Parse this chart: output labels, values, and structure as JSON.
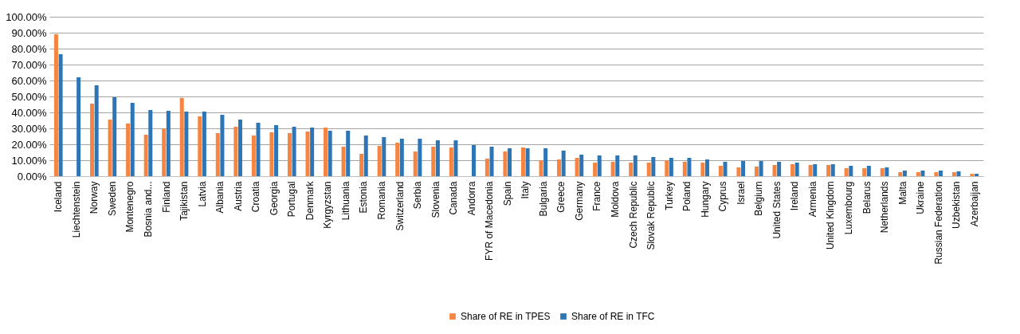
{
  "chart_data": {
    "type": "bar",
    "categories": [
      "Iceland",
      "Liechtenstein",
      "Norway",
      "Sweden",
      "Montenegro",
      "Bosnia and...",
      "Finland",
      "Tajikistan",
      "Latvia",
      "Albania",
      "Austria",
      "Croatia",
      "Georgia",
      "Portugal",
      "Denmark",
      "Kyrgyzstan",
      "Lithuania",
      "Estonia",
      "Romania",
      "Switzerland",
      "Serbia",
      "Slovenia",
      "Canada",
      "Andorra",
      "FYR of Macedonia",
      "Spain",
      "Italy",
      "Bulgaria",
      "Greece",
      "Germany",
      "France",
      "Moldova",
      "Czech Republic",
      "Slovak Republic",
      "Turkey",
      "Poland",
      "Hungary",
      "Cyprus",
      "Israel",
      "Belgium",
      "United States",
      "Ireland",
      "Armenia",
      "United Kingdom",
      "Luxembourg",
      "Belarus",
      "Netherlands",
      "Malta",
      "Ukraine",
      "Russian Federation",
      "Uzbekistan",
      "Azerbaijan"
    ],
    "series": [
      {
        "name": "Share of RE in TPES",
        "color": "#f58540",
        "values": [
          89,
          null,
          45.5,
          35.5,
          33,
          26,
          30,
          49,
          37.5,
          27,
          31,
          25.5,
          27.5,
          27,
          28,
          30.5,
          18.5,
          14,
          19,
          21,
          15.5,
          18.5,
          18,
          null,
          11,
          15.5,
          18,
          10,
          10.5,
          11.5,
          8.5,
          9,
          8.5,
          8.5,
          10,
          9,
          8.5,
          6.5,
          5.5,
          6,
          7,
          7.5,
          7,
          7,
          5,
          5,
          5,
          2.5,
          2.5,
          2.5,
          2.5,
          1.5
        ]
      },
      {
        "name": "Share of RE in TFC",
        "color": "#2e75b6",
        "values": [
          76.5,
          62,
          57,
          49.5,
          46,
          41.5,
          41,
          40.5,
          40.5,
          38.5,
          35.5,
          33.5,
          32,
          31,
          30.5,
          28.5,
          28.5,
          25.5,
          24.5,
          23.5,
          23.5,
          22.5,
          22.5,
          19.5,
          18.5,
          17.5,
          17.5,
          17.5,
          16,
          13.5,
          13,
          13,
          13,
          12,
          11.5,
          11.5,
          10.5,
          9,
          9.5,
          9.5,
          9,
          8.5,
          7.5,
          7.5,
          6.5,
          6.5,
          5.5,
          3.5,
          3.5,
          3.5,
          3,
          1.5
        ]
      }
    ],
    "ylim": [
      0,
      100
    ],
    "yticks": [
      {
        "value": 0,
        "label": "0.00%"
      },
      {
        "value": 10,
        "label": "10.00%"
      },
      {
        "value": 20,
        "label": "20.00%"
      },
      {
        "value": 30,
        "label": "30.00%"
      },
      {
        "value": 40,
        "label": "40.00%"
      },
      {
        "value": 50,
        "label": "50.00%"
      },
      {
        "value": 60,
        "label": "60.00%"
      },
      {
        "value": 70,
        "label": "70.00%"
      },
      {
        "value": 80,
        "label": "80.00%"
      },
      {
        "value": 90,
        "label": "90.00%"
      },
      {
        "value": 100,
        "label": "100.00%"
      }
    ],
    "grid": "y",
    "legend": "bottom"
  }
}
